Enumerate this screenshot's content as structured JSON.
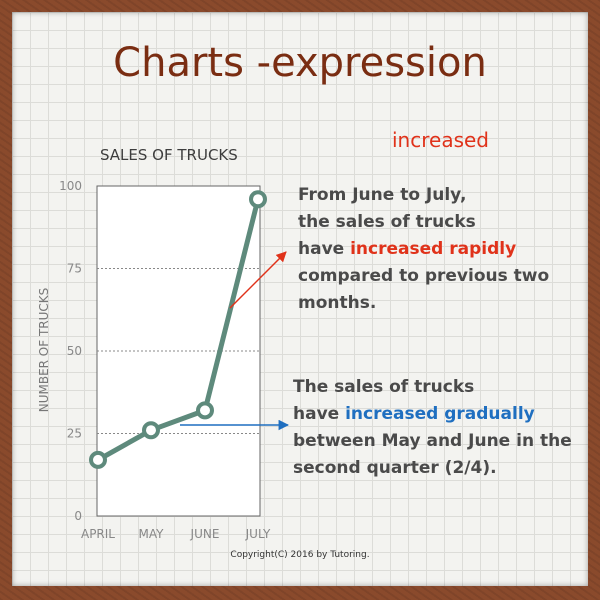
{
  "title": "Charts -expression",
  "keyword": "increased",
  "note1": {
    "line1": "From June to July,",
    "line2": "the sales of trucks",
    "line3_pre": "have ",
    "line3_hl": "increased rapidly",
    "line4": "compared to previous two",
    "line5": "months."
  },
  "note2": {
    "line1": "The sales of trucks",
    "line2_pre": "have ",
    "line2_hl": "increased gradually",
    "line3": "between May and June in the",
    "line4": "second quarter (2/4)."
  },
  "copyright": "Copyright(C) 2016 by Tutoring.",
  "colors": {
    "line": "#5e8a7c",
    "highlight_red": "#e0321a",
    "highlight_blue": "#1f6fc0",
    "title": "#7a2d12"
  },
  "chart_data": {
    "type": "line",
    "title": "SALES OF TRUCKS",
    "xlabel": "",
    "ylabel": "NUMBER OF TRUCKS",
    "categories": [
      "APRIL",
      "MAY",
      "JUNE",
      "JULY"
    ],
    "series": [
      {
        "values": [
          17,
          26,
          32,
          96
        ]
      }
    ],
    "ylim": [
      0,
      100
    ],
    "yticks": [
      0,
      25,
      50,
      75,
      100
    ],
    "grid": "dotted horizontal at 25, 50, 75",
    "legend": "none"
  }
}
